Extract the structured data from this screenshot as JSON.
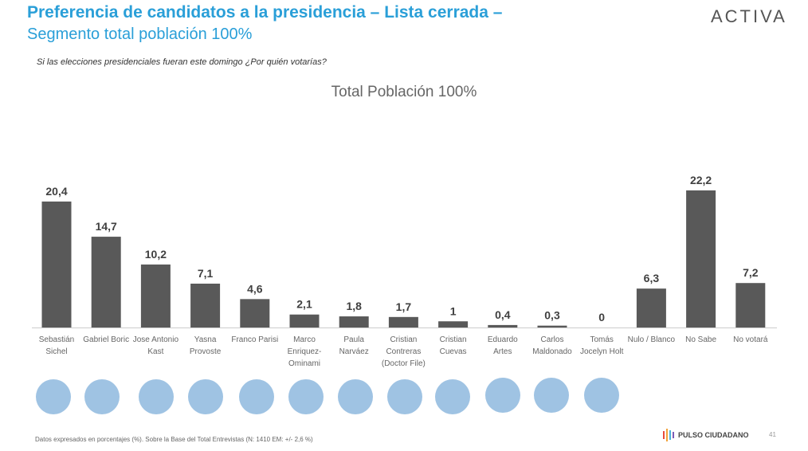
{
  "header": {
    "title": "Preferencia de candidatos a la presidencia – Lista cerrada –",
    "subtitle": "Segmento total población 100%",
    "brand": "ACTIVA"
  },
  "question": "Si las elecciones presidenciales fueran este domingo ¿Por quién votarías?",
  "chart_data": {
    "type": "bar",
    "title": "Total Población 100%",
    "categories": [
      "Sebastián Sichel",
      "Gabriel Boric",
      "Jose Antonio Kast",
      "Yasna Provoste",
      "Franco Parisi",
      "Marco Enriquez-Ominami",
      "Paula Narváez",
      "Cristian Contreras (Doctor File)",
      "Cristian Cuevas",
      "Eduardo Artes",
      "Carlos Maldonado",
      "Tomás Jocelyn Holt",
      "Nulo / Blanco",
      "No Sabe",
      "No votará"
    ],
    "values": [
      20.4,
      14.7,
      10.2,
      7.1,
      4.6,
      2.1,
      1.8,
      1.7,
      1,
      0.4,
      0.3,
      0,
      6.3,
      22.2,
      7.2
    ],
    "value_labels": [
      "20,4",
      "14,7",
      "10,2",
      "7,1",
      "4,6",
      "2,1",
      "1,8",
      "1,7",
      "1",
      "0,4",
      "0,3",
      "0",
      "6,3",
      "22,2",
      "7,2"
    ],
    "color": "#595959"
  },
  "footer": {
    "note": "Datos expresados en porcentajes (%). Sobre la Base del Total Entrevistas (N: 1410  EM: +/- 2,6 %)",
    "logo": "PULSO CIUDADANO",
    "page": "41"
  }
}
